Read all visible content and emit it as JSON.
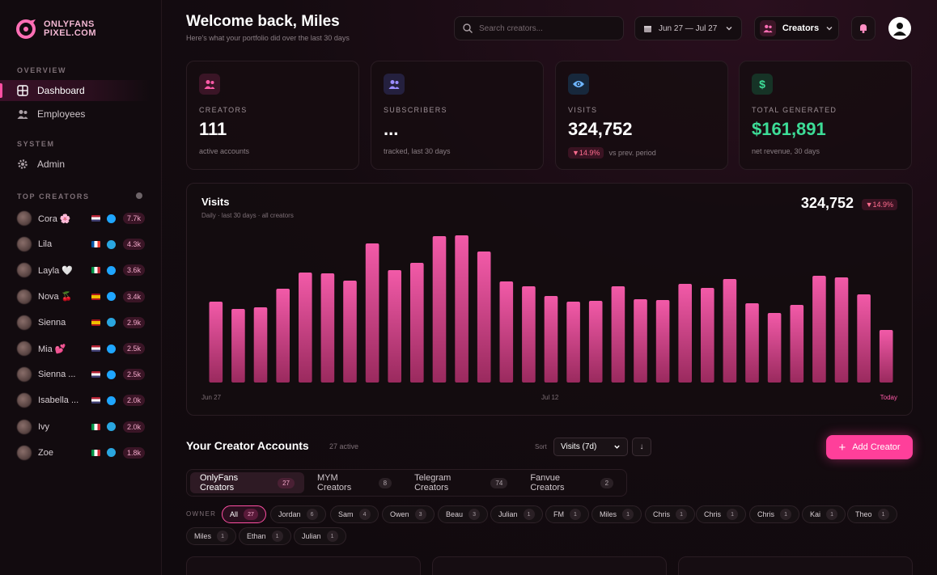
{
  "app": {
    "logo_line1": "ONLYFANS",
    "logo_line2": "PIXEL.COM"
  },
  "sidebar": {
    "overview_label": "OVERVIEW",
    "nav": [
      {
        "label": "Dashboard",
        "icon": "grid-icon"
      },
      {
        "label": "Employees",
        "icon": "users-icon"
      }
    ],
    "system_label": "SYSTEM",
    "system_nav": [
      {
        "label": "Admin",
        "icon": "gear-icon"
      }
    ],
    "top_creators_label": "TOP CREATORS",
    "top_creators": [
      {
        "name": "Cora 🌸",
        "flag": "us",
        "platform": "onlyfans",
        "count": "7.7k"
      },
      {
        "name": "Lila",
        "flag": "fr",
        "platform": "telegram",
        "count": "4.3k"
      },
      {
        "name": "Layla 🤍",
        "flag": "it",
        "platform": "onlyfans",
        "count": "3.6k"
      },
      {
        "name": "Nova 🍒",
        "flag": "es",
        "platform": "onlyfans",
        "count": "3.4k"
      },
      {
        "name": "Sienna",
        "flag": "es",
        "platform": "telegram",
        "count": "2.9k"
      },
      {
        "name": "Mia 💕",
        "flag": "us",
        "platform": "onlyfans",
        "count": "2.5k"
      },
      {
        "name": "Sienna ...",
        "flag": "us",
        "platform": "onlyfans",
        "count": "2.5k"
      },
      {
        "name": "Isabella ...",
        "flag": "us",
        "platform": "onlyfans",
        "count": "2.0k"
      },
      {
        "name": "Ivy",
        "flag": "it",
        "platform": "telegram",
        "count": "2.0k"
      },
      {
        "name": "Zoe",
        "flag": "it",
        "platform": "telegram",
        "count": "1.8k"
      }
    ]
  },
  "header": {
    "title": "Welcome back, Miles",
    "subtitle": "Here's what your portfolio did over the last 30 days",
    "search_placeholder": "Search creators...",
    "date_range": "Jun 27 — Jul 27",
    "creators_button": "Creators"
  },
  "stats": [
    {
      "label": "CREATORS",
      "value": "111",
      "sub": "active accounts",
      "icon": "users-icon",
      "accent": "#ff5aa8"
    },
    {
      "label": "SUBSCRIBERS",
      "value": "...",
      "sub": "tracked, last 30 days",
      "icon": "users-icon",
      "accent": "#9b8cff"
    },
    {
      "label": "VISITS",
      "value": "324,752",
      "sub": "vs prev. period",
      "delta": "▼14.9%",
      "icon": "eye-icon",
      "accent": "#6fb6ff"
    },
    {
      "label": "TOTAL GENERATED",
      "value": "$161,891",
      "sub": "net revenue, 30 days",
      "icon": "dollar-icon",
      "accent": "#3ddc97"
    }
  ],
  "chart_data": {
    "type": "bar",
    "title": "Visits",
    "subtitle": "Daily · last 30 days · all creators",
    "total": "324,752",
    "delta": "▼14.9%",
    "x_labels": [
      "Jun 27",
      "Jul 12",
      "Today"
    ],
    "values": [
      100,
      91,
      93,
      116,
      136,
      135,
      126,
      172,
      139,
      148,
      181,
      182,
      162,
      125,
      119,
      107,
      100,
      101,
      119,
      103,
      102,
      122,
      117,
      128,
      98,
      86,
      96,
      132,
      130,
      109,
      65
    ],
    "color": "#e94f9c"
  },
  "accounts": {
    "title": "Your Creator Accounts",
    "count": "27 active",
    "sort_label": "Sort",
    "sort_value": "Visits (7d)",
    "sort_dir": "↓",
    "add_button": "Add Creator",
    "tabs": [
      {
        "label": "OnlyFans Creators",
        "count": "27"
      },
      {
        "label": "MYM Creators",
        "count": "8"
      },
      {
        "label": "Telegram Creators",
        "count": "74"
      },
      {
        "label": "Fanvue Creators",
        "count": "2"
      }
    ],
    "owner_label": "OWNER",
    "owners": [
      {
        "name": "All",
        "count": "27"
      },
      {
        "name": "Jordan",
        "count": "6"
      },
      {
        "name": "Sam",
        "count": "4"
      },
      {
        "name": "Owen",
        "count": "3"
      },
      {
        "name": "Beau",
        "count": "3"
      },
      {
        "name": "Julian",
        "count": "1"
      },
      {
        "name": "FM",
        "count": "1"
      },
      {
        "name": "Miles",
        "count": "1"
      },
      {
        "name": "Chris",
        "count": "1"
      },
      {
        "name": "Chris",
        "count": "1"
      },
      {
        "name": "Chris",
        "count": "1"
      },
      {
        "name": "Kai",
        "count": "1"
      },
      {
        "name": "Theo",
        "count": "1"
      },
      {
        "name": "Miles",
        "count": "1"
      },
      {
        "name": "Ethan",
        "count": "1"
      },
      {
        "name": "Julian",
        "count": "1"
      }
    ]
  }
}
